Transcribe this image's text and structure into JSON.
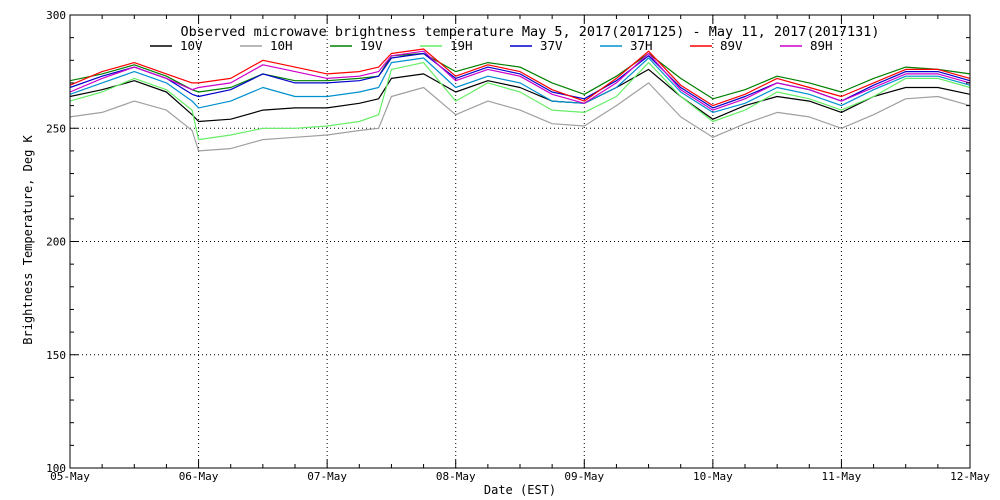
{
  "chart_data": {
    "type": "line",
    "title": "Observed microwave brightness temperature May  5, 2017(2017125) - May 11, 2017(2017131)",
    "xlabel": "Date (EST)",
    "ylabel": "Brightness Temperature, Deg K",
    "x_ticks": [
      "05-May",
      "06-May",
      "07-May",
      "08-May",
      "09-May",
      "10-May",
      "11-May",
      "12-May"
    ],
    "y_ticks": [
      "100",
      "150",
      "200",
      "250",
      "300"
    ],
    "xlim": [
      0,
      7
    ],
    "ylim": [
      100,
      300
    ],
    "grid": "dotted",
    "legend_position": "top",
    "x": [
      0,
      0.25,
      0.5,
      0.75,
      0.95,
      1.0,
      1.25,
      1.5,
      1.75,
      2.0,
      2.25,
      2.4,
      2.5,
      2.75,
      3.0,
      3.25,
      3.5,
      3.75,
      4.0,
      4.25,
      4.5,
      4.75,
      5.0,
      5.25,
      5.5,
      5.75,
      6.0,
      6.25,
      6.5,
      6.75,
      7.0
    ],
    "series": [
      {
        "name": "10V",
        "color": "#000000",
        "values": [
          264,
          267,
          271,
          266,
          256,
          253,
          254,
          258,
          259,
          259,
          261,
          263,
          272,
          274,
          266,
          271,
          268,
          262,
          261,
          268,
          276,
          264,
          254,
          260,
          264,
          262,
          257,
          264,
          268,
          268,
          265
        ]
      },
      {
        "name": "10H",
        "color": "#a0a0a0",
        "values": [
          255,
          257,
          262,
          258,
          249,
          240,
          241,
          245,
          246,
          247,
          249,
          250,
          264,
          268,
          256,
          262,
          258,
          252,
          251,
          260,
          270,
          255,
          246,
          252,
          257,
          255,
          250,
          256,
          263,
          264,
          260
        ]
      },
      {
        "name": "19V",
        "color": "#008000",
        "values": [
          271,
          274,
          278,
          273,
          267,
          266,
          268,
          274,
          271,
          271,
          272,
          273,
          282,
          283,
          275,
          279,
          277,
          270,
          265,
          273,
          283,
          272,
          263,
          267,
          273,
          270,
          266,
          272,
          277,
          276,
          274
        ]
      },
      {
        "name": "19H",
        "color": "#66ee66",
        "values": [
          262,
          266,
          272,
          267,
          258,
          245,
          247,
          250,
          250,
          251,
          253,
          256,
          276,
          279,
          262,
          270,
          266,
          258,
          257,
          264,
          279,
          264,
          253,
          258,
          266,
          263,
          258,
          264,
          272,
          272,
          268
        ]
      },
      {
        "name": "37V",
        "color": "#0000cc",
        "values": [
          268,
          273,
          277,
          272,
          265,
          264,
          267,
          274,
          270,
          270,
          271,
          273,
          281,
          283,
          272,
          277,
          274,
          266,
          263,
          271,
          282,
          268,
          259,
          264,
          270,
          267,
          262,
          269,
          275,
          275,
          271
        ]
      },
      {
        "name": "37H",
        "color": "#0090d0",
        "values": [
          265,
          270,
          275,
          270,
          262,
          259,
          262,
          268,
          264,
          264,
          266,
          268,
          279,
          281,
          268,
          273,
          270,
          262,
          261,
          268,
          281,
          266,
          257,
          261,
          268,
          265,
          260,
          267,
          273,
          273,
          269
        ]
      },
      {
        "name": "89V",
        "color": "#ff0000",
        "values": [
          269,
          275,
          279,
          274,
          270,
          270,
          272,
          280,
          277,
          274,
          275,
          277,
          283,
          285,
          273,
          278,
          275,
          267,
          262,
          272,
          284,
          269,
          260,
          265,
          272,
          268,
          264,
          270,
          276,
          276,
          272
        ]
      },
      {
        "name": "89H",
        "color": "#cc00cc",
        "values": [
          266,
          272,
          277,
          272,
          267,
          268,
          270,
          278,
          275,
          272,
          273,
          275,
          282,
          284,
          271,
          276,
          273,
          265,
          261,
          270,
          283,
          267,
          258,
          263,
          270,
          267,
          262,
          268,
          274,
          274,
          270
        ]
      }
    ]
  }
}
